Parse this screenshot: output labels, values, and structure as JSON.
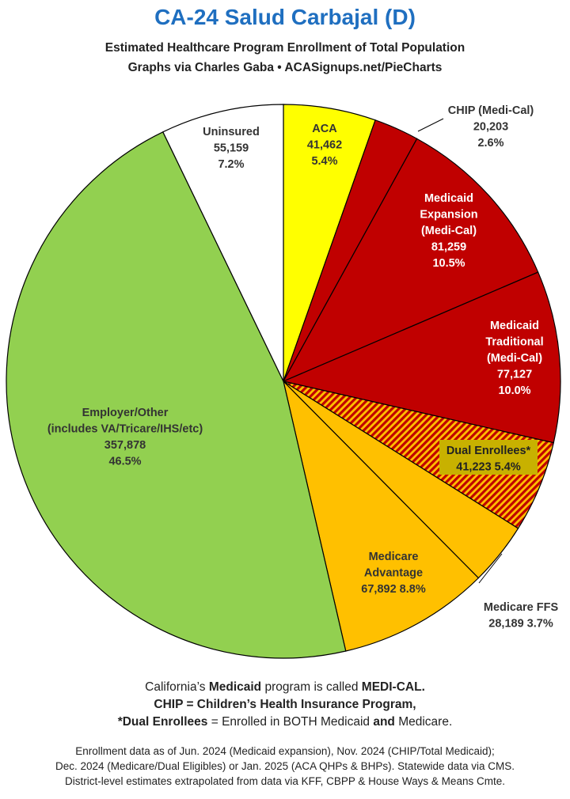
{
  "header": {
    "title": "CA-24 Salud Carbajal (D)",
    "subtitle": "Estimated Healthcare Program Enrollment of Total Population",
    "credit": "Graphs via Charles Gaba  •  ACASignups.net/PieCharts"
  },
  "chart_data": {
    "type": "pie",
    "start": "12 o'clock, clockwise",
    "slices": [
      {
        "label": [
          "ACA"
        ],
        "value": 41462,
        "value_text": "41,462",
        "pct": "5.4%",
        "color": "#ffff00"
      },
      {
        "label": [
          "CHIP (Medi-Cal)"
        ],
        "value": 20203,
        "value_text": "20,203",
        "pct": "2.6%",
        "color": "#c00000"
      },
      {
        "label": [
          "Medicaid",
          "Expansion",
          "(Medi-Cal)"
        ],
        "value": 81259,
        "value_text": "81,259",
        "pct": "10.5%",
        "color": "#c00000"
      },
      {
        "label": [
          "Medicaid",
          "Traditional",
          "(Medi-Cal)"
        ],
        "value": 77127,
        "value_text": "77,127",
        "pct": "10.0%",
        "color": "#c00000"
      },
      {
        "label": [
          "Dual Enrollees*"
        ],
        "value": 41223,
        "value_text": "41,223",
        "pct": "5.4%",
        "color": "#c00000",
        "pattern": "hatched-red-orange"
      },
      {
        "label": [
          "Medicare FFS"
        ],
        "value": 28189,
        "value_text": "28,189",
        "pct": "3.7%",
        "color": "#ffc000"
      },
      {
        "label": [
          "Medicare",
          "Advantage"
        ],
        "value": 67892,
        "value_text": "67,892",
        "pct": "8.8%",
        "color": "#ffc000"
      },
      {
        "label": [
          "Employer/Other",
          "(includes VA/Tricare/IHS/etc)"
        ],
        "value": 357878,
        "value_text": "357,878",
        "pct": "46.5%",
        "color": "#92d050"
      },
      {
        "label": [
          "Uninsured"
        ],
        "value": 55159,
        "value_text": "55,159",
        "pct": "7.2%",
        "color": "#ffffff"
      }
    ]
  },
  "notes": {
    "line1_pre": "California’s ",
    "line1_b1": "Medicaid",
    "line1_mid": " program is called ",
    "line1_b2": "MEDI-CAL.",
    "line2": "CHIP = Children’s Health Insurance Program,",
    "line3_b1": "*Dual Enrollees",
    "line3_mid": " = Enrolled in BOTH Medicaid ",
    "line3_b2": "and",
    "line3_post": " Medicare."
  },
  "footer": {
    "line1": "Enrollment data as of Jun. 2024 (Medicaid expansion), Nov. 2024 (CHIP/Total Medicaid);",
    "line2": "Dec. 2024 (Medicare/Dual Eligibles) or Jan. 2025 (ACA QHPs & BHPs). Statewide data via CMS.",
    "line3": "District-level estimates extrapolated from data via KFF, CBPP & House Ways & Means Cmte."
  }
}
